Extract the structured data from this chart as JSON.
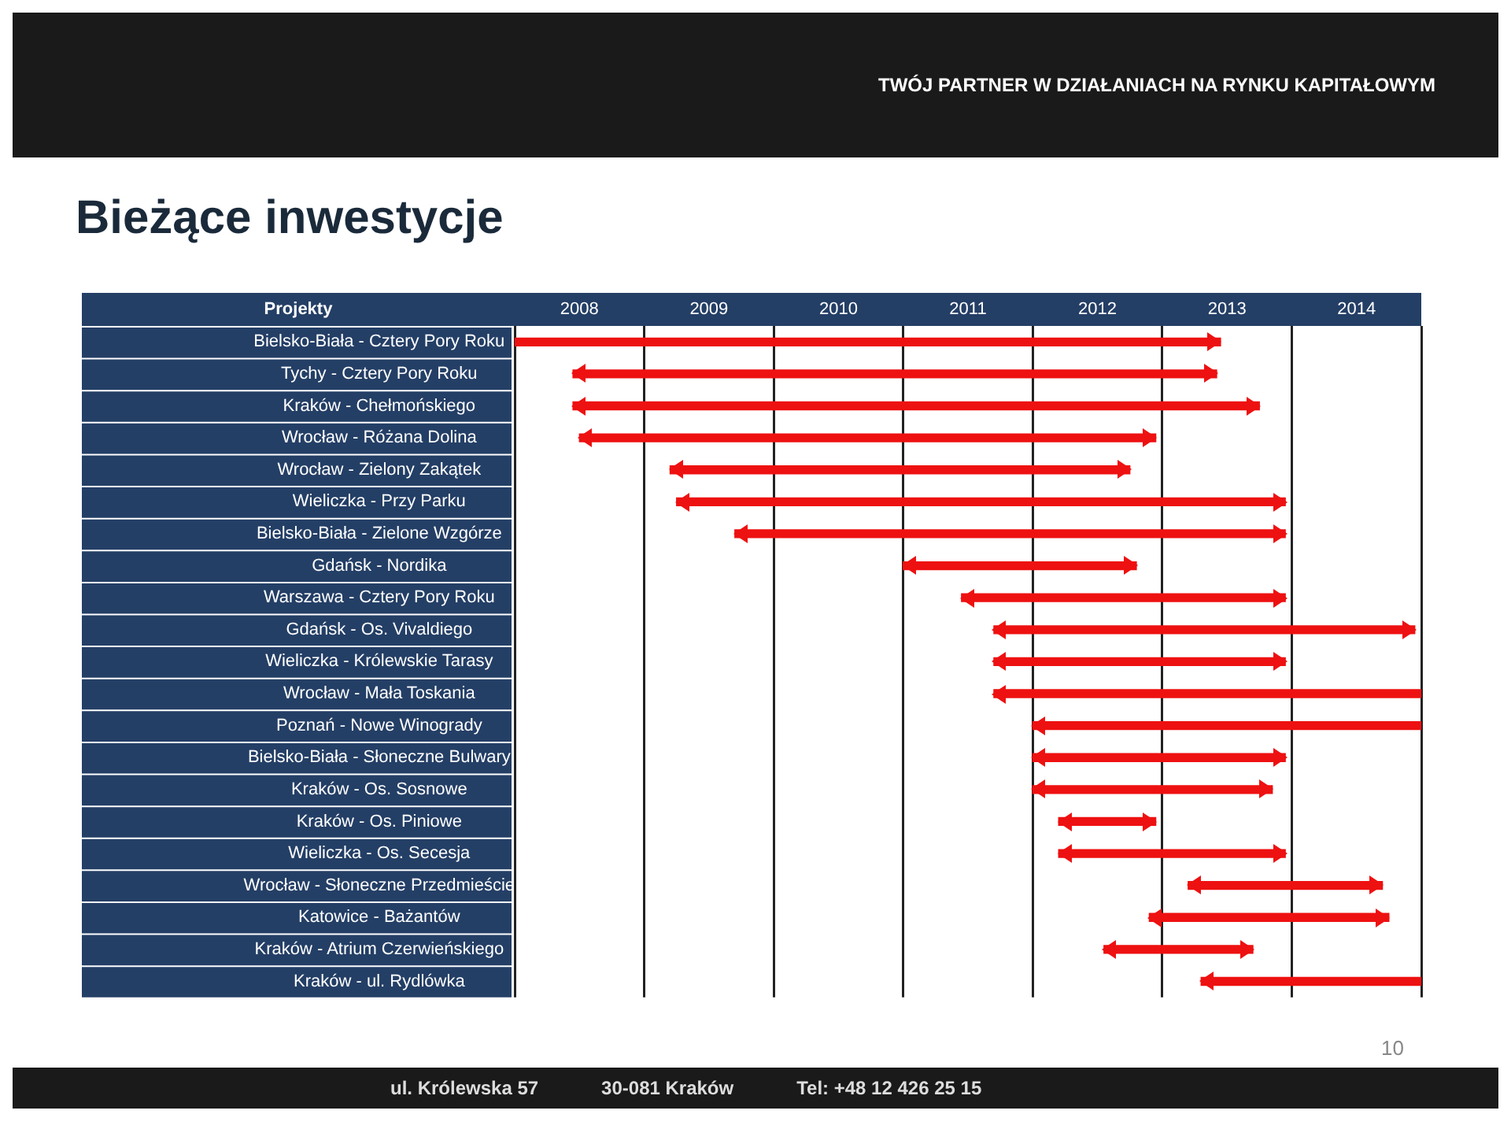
{
  "chart_data": {
    "type": "bar",
    "orientation": "horizontal",
    "title": "Bieżące inwestycje",
    "ylabel": "Projekty",
    "annotations": [
      "TWÓJ PARTNER W DZIAŁANIACH NA RYNKU KAPITAŁOWYM",
      "ul. Królewska 57",
      "30-081 Kraków",
      "Tel: +48 12 426 25 15",
      "10"
    ],
    "categories": [
      "Bielsko-Biała - Cztery Pory Roku",
      "Tychy - Cztery Pory Roku",
      "Kraków - Chełmońskiego",
      "Wrocław - Różana Dolina",
      "Wrocław - Zielony Zakątek",
      "Wieliczka - Przy Parku",
      "Bielsko-Biała - Zielone Wzgórze",
      "Gdańsk - Nordika",
      "Warszawa - Cztery Pory Roku",
      "Gdańsk - Os. Vivaldiego",
      "Wieliczka - Królewskie Tarasy",
      "Wrocław - Mała Toskania",
      "Poznań - Nowe Winogrady",
      "Bielsko-Biała - Słoneczne Bulwary",
      "Kraków - Os. Sosnowe",
      "Kraków - Os. Piniowe",
      "Wieliczka - Os. Secesja",
      "Wrocław - Słoneczne Przedmieście",
      "Katowice - Bażantów",
      "Kraków - Atrium Czerwieńskiego",
      "Kraków - ul. Rydlówka"
    ],
    "base": [
      2008.0,
      2008.45,
      2008.45,
      2008.5,
      2009.2,
      2009.25,
      2009.7,
      2011.0,
      2011.45,
      2011.7,
      2011.7,
      2011.7,
      2012.0,
      2012.0,
      2012.0,
      2012.2,
      2012.2,
      2013.2,
      2012.9,
      2012.55,
      2013.3
    ],
    "values": [
      5.45,
      4.97,
      5.3,
      4.45,
      3.55,
      4.7,
      4.25,
      1.8,
      2.5,
      3.25,
      2.25,
      3.3,
      3.0,
      1.95,
      1.85,
      0.75,
      1.75,
      1.5,
      1.85,
      1.15,
      1.7
    ],
    "color": "#ee1111",
    "xlim": [
      2008,
      2015
    ],
    "xticks": [
      {
        "value": 2008,
        "label": null
      },
      {
        "value": 2008.5,
        "label": "2008"
      },
      {
        "value": 2009,
        "label": null
      },
      {
        "value": 2009.5,
        "label": "2009"
      },
      {
        "value": 2010,
        "label": null
      },
      {
        "value": 2010.5,
        "label": "2010"
      },
      {
        "value": 2011,
        "label": null
      },
      {
        "value": 2011.5,
        "label": "2011"
      },
      {
        "value": 2012,
        "label": null
      },
      {
        "value": 2012.5,
        "label": "2012"
      },
      {
        "value": 2013,
        "label": null
      },
      {
        "value": 2013.5,
        "label": "2013"
      },
      {
        "value": 2014,
        "label": null
      },
      {
        "value": 2014.5,
        "label": "2014"
      },
      {
        "value": 2015,
        "label": null
      }
    ],
    "grid": "x",
    "legend": false
  }
}
